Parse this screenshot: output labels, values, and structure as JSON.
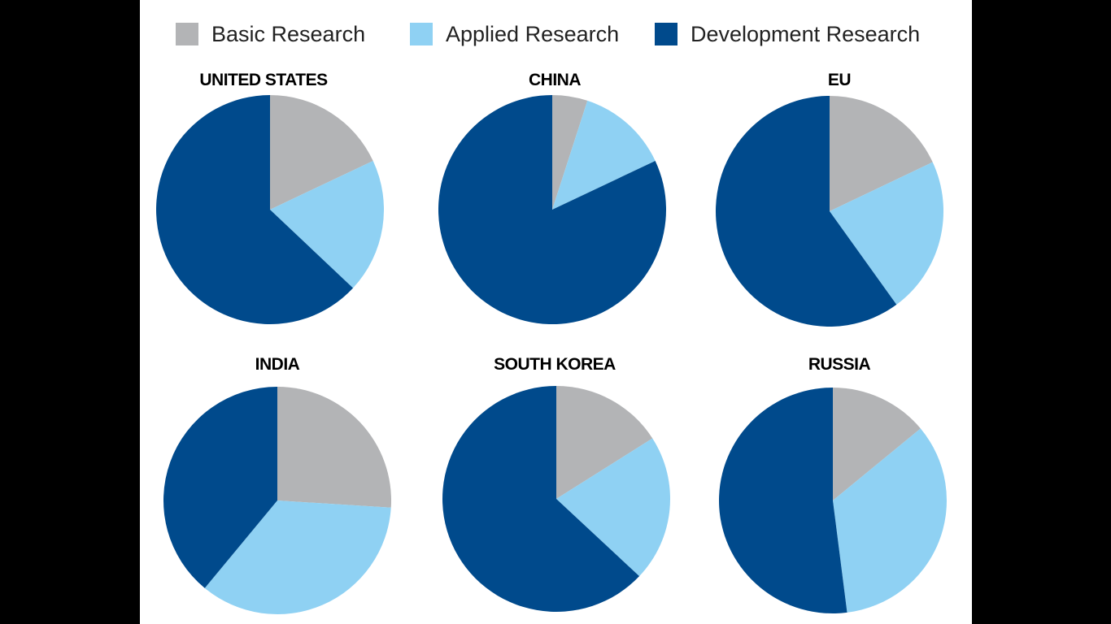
{
  "colors": {
    "basic": "#b3b4b6",
    "applied": "#8fd1f3",
    "development": "#004a8c"
  },
  "legend": [
    {
      "label": "Basic Research",
      "color": "#b3b4b6"
    },
    {
      "label": "Applied Research",
      "color": "#8fd1f3"
    },
    {
      "label": "Development Research",
      "color": "#004a8c"
    }
  ],
  "chart_data": [
    {
      "type": "pie",
      "title": "UNITED STATES",
      "labels": [
        "Basic Research",
        "Applied Research",
        "Development Research"
      ],
      "values": [
        18,
        19,
        63
      ]
    },
    {
      "type": "pie",
      "title": "CHINA",
      "labels": [
        "Basic Research",
        "Applied Research",
        "Development Research"
      ],
      "values": [
        5,
        13,
        82
      ]
    },
    {
      "type": "pie",
      "title": "EU",
      "labels": [
        "Basic Research",
        "Applied Research",
        "Development Research"
      ],
      "values": [
        18,
        22,
        60
      ]
    },
    {
      "type": "pie",
      "title": "INDIA",
      "labels": [
        "Basic Research",
        "Applied Research",
        "Development Research"
      ],
      "values": [
        26,
        35,
        39
      ]
    },
    {
      "type": "pie",
      "title": "SOUTH KOREA",
      "labels": [
        "Basic Research",
        "Applied Research",
        "Development Research"
      ],
      "values": [
        16,
        21,
        63
      ]
    },
    {
      "type": "pie",
      "title": "RUSSIA",
      "labels": [
        "Basic Research",
        "Applied Research",
        "Development Research"
      ],
      "values": [
        14,
        34,
        52
      ]
    }
  ]
}
